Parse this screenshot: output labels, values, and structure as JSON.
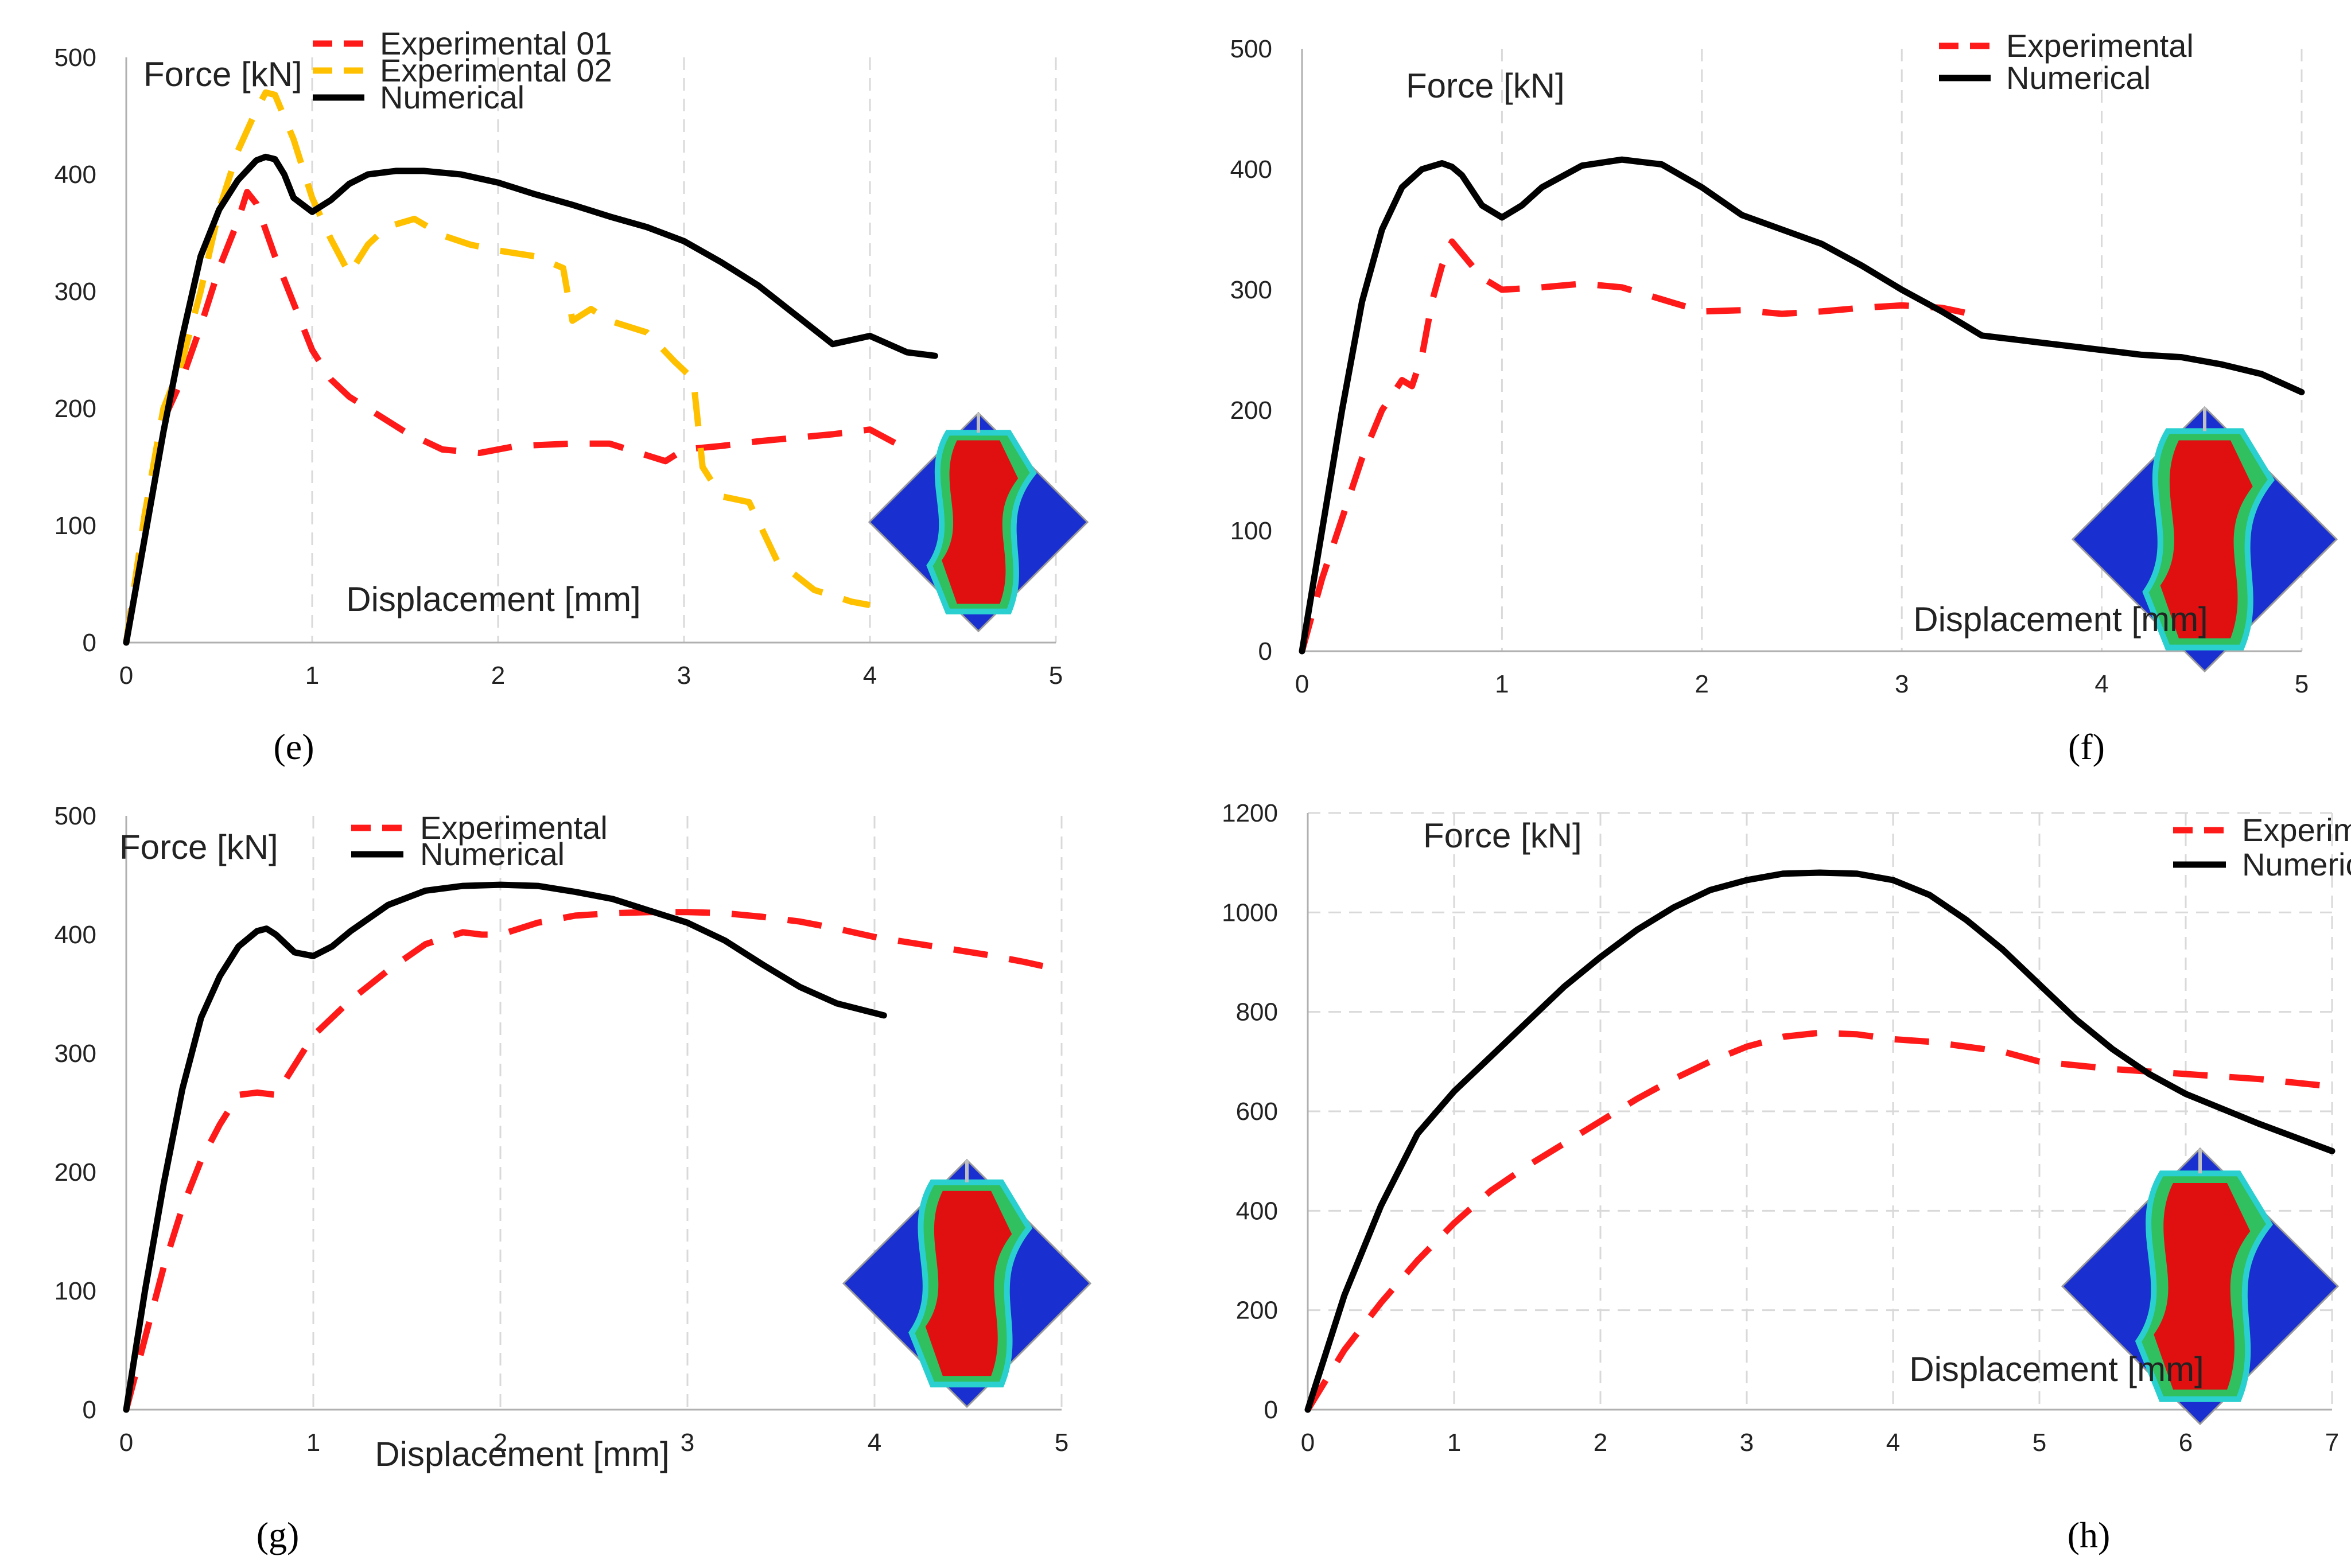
{
  "chart_data": [
    {
      "id": "e",
      "type": "line",
      "panel_label": "(e)",
      "ylabel": "Force [kN]",
      "xlabel": "Displacement [mm]",
      "xlim": [
        0,
        5
      ],
      "ylim": [
        0,
        500
      ],
      "xticks": [
        0,
        1,
        2,
        3,
        4,
        5
      ],
      "yticks": [
        0,
        100,
        200,
        300,
        400,
        500
      ],
      "grid": "vertical dashed",
      "legend_position": "top-right",
      "inset": "damage contour (diamond), bottom-right",
      "series": [
        {
          "name": "Experimental 01",
          "color": "#ff1a1a",
          "style": "dashed",
          "x": [
            0,
            0.1,
            0.2,
            0.3,
            0.4,
            0.5,
            0.6,
            0.65,
            0.7,
            0.8,
            0.9,
            1.0,
            1.1,
            1.2,
            1.3,
            1.5,
            1.7,
            1.9,
            2.1,
            2.4,
            2.6,
            2.8,
            2.9,
            3.0,
            3.2,
            3.4,
            3.6,
            3.8,
            4.0,
            4.2
          ],
          "y": [
            0,
            110,
            190,
            225,
            270,
            320,
            360,
            385,
            375,
            330,
            290,
            250,
            225,
            210,
            200,
            180,
            165,
            162,
            168,
            170,
            170,
            160,
            155,
            165,
            168,
            172,
            175,
            178,
            182,
            165
          ]
        },
        {
          "name": "Experimental 02",
          "color": "#ffc000",
          "style": "dashed",
          "x": [
            0,
            0.1,
            0.2,
            0.3,
            0.4,
            0.5,
            0.6,
            0.7,
            0.75,
            0.8,
            0.9,
            1.0,
            1.1,
            1.2,
            1.3,
            1.4,
            1.55,
            1.7,
            1.85,
            2.0,
            2.2,
            2.35,
            2.4,
            2.5,
            2.6,
            2.8,
            2.95,
            3.05,
            3.1,
            3.2,
            3.35,
            3.5,
            3.7,
            3.9,
            4.0
          ],
          "y": [
            0,
            110,
            200,
            240,
            300,
            370,
            420,
            455,
            470,
            468,
            430,
            380,
            345,
            315,
            340,
            355,
            362,
            348,
            340,
            335,
            330,
            320,
            275,
            285,
            275,
            265,
            240,
            225,
            150,
            125,
            120,
            70,
            45,
            35,
            32
          ]
        },
        {
          "name": "Numerical",
          "color": "#000000",
          "style": "solid",
          "x": [
            0,
            0.1,
            0.2,
            0.3,
            0.4,
            0.5,
            0.6,
            0.7,
            0.75,
            0.8,
            0.85,
            0.9,
            1.0,
            1.1,
            1.2,
            1.3,
            1.45,
            1.6,
            1.8,
            2.0,
            2.2,
            2.4,
            2.6,
            2.8,
            3.0,
            3.2,
            3.4,
            3.6,
            3.8,
            4.0,
            4.2,
            4.35
          ],
          "y": [
            0,
            90,
            180,
            260,
            330,
            370,
            395,
            412,
            415,
            413,
            400,
            380,
            368,
            378,
            392,
            400,
            403,
            403,
            400,
            393,
            383,
            374,
            364,
            355,
            343,
            325,
            305,
            280,
            255,
            262,
            248,
            245
          ]
        }
      ]
    },
    {
      "id": "f",
      "type": "line",
      "panel_label": "(f)",
      "ylabel": "Force [kN]",
      "xlabel": "Displacement [mm]",
      "xlim": [
        0,
        5
      ],
      "ylim": [
        0,
        500
      ],
      "xticks": [
        0,
        1,
        2,
        3,
        4,
        5
      ],
      "yticks": [
        0,
        100,
        200,
        300,
        400,
        500
      ],
      "grid": "vertical dashed",
      "legend_position": "top-right",
      "inset": "damage contour (diamond), bottom-right",
      "series": [
        {
          "name": "Experimental",
          "color": "#ff1a1a",
          "style": "dashed",
          "x": [
            0,
            0.1,
            0.2,
            0.3,
            0.4,
            0.5,
            0.55,
            0.6,
            0.65,
            0.7,
            0.75,
            0.8,
            0.9,
            1.0,
            1.2,
            1.4,
            1.6,
            1.8,
            2.0,
            2.2,
            2.4,
            2.6,
            2.8,
            3.0,
            3.2,
            3.4
          ],
          "y": [
            0,
            60,
            110,
            160,
            200,
            225,
            220,
            245,
            290,
            320,
            340,
            330,
            310,
            300,
            302,
            305,
            302,
            292,
            282,
            283,
            280,
            282,
            285,
            287,
            285,
            278
          ]
        },
        {
          "name": "Numerical",
          "color": "#000000",
          "style": "solid",
          "x": [
            0,
            0.1,
            0.2,
            0.3,
            0.4,
            0.5,
            0.6,
            0.7,
            0.75,
            0.8,
            0.9,
            1.0,
            1.1,
            1.2,
            1.4,
            1.6,
            1.8,
            2.0,
            2.2,
            2.4,
            2.6,
            2.8,
            3.0,
            3.2,
            3.4,
            3.6,
            3.8,
            4.0,
            4.2,
            4.4,
            4.6,
            4.8,
            5.0
          ],
          "y": [
            0,
            100,
            200,
            290,
            350,
            385,
            400,
            405,
            402,
            395,
            370,
            360,
            370,
            385,
            403,
            408,
            404,
            385,
            362,
            350,
            338,
            320,
            300,
            282,
            262,
            258,
            254,
            250,
            246,
            244,
            238,
            230,
            215
          ]
        }
      ]
    },
    {
      "id": "g",
      "type": "line",
      "panel_label": "(g)",
      "ylabel": "Force [kN]",
      "xlabel": "Displacement [mm]",
      "xlim": [
        0,
        5
      ],
      "ylim": [
        0,
        500
      ],
      "xticks": [
        0,
        1,
        2,
        3,
        4,
        5
      ],
      "yticks": [
        0,
        100,
        200,
        300,
        400,
        500
      ],
      "grid": "vertical dashed",
      "legend_position": "top-right",
      "inset": "damage contour (diamond), bottom-right",
      "series": [
        {
          "name": "Experimental",
          "color": "#ff1a1a",
          "style": "dashed",
          "x": [
            0,
            0.1,
            0.2,
            0.3,
            0.4,
            0.5,
            0.6,
            0.7,
            0.8,
            0.9,
            1.0,
            1.2,
            1.4,
            1.6,
            1.8,
            1.9,
            2.0,
            2.2,
            2.4,
            2.6,
            2.8,
            3.0,
            3.2,
            3.4,
            3.6,
            3.8,
            4.0,
            4.2,
            4.4,
            4.6,
            4.8,
            5.0
          ],
          "y": [
            0,
            60,
            120,
            170,
            210,
            240,
            265,
            267,
            265,
            290,
            315,
            345,
            370,
            392,
            402,
            400,
            400,
            410,
            416,
            418,
            419,
            419,
            418,
            415,
            411,
            405,
            398,
            393,
            388,
            383,
            377,
            370
          ]
        },
        {
          "name": "Numerical",
          "color": "#000000",
          "style": "solid",
          "x": [
            0,
            0.1,
            0.2,
            0.3,
            0.4,
            0.5,
            0.6,
            0.7,
            0.75,
            0.8,
            0.9,
            1.0,
            1.1,
            1.2,
            1.4,
            1.6,
            1.8,
            2.0,
            2.2,
            2.4,
            2.6,
            2.8,
            3.0,
            3.2,
            3.4,
            3.6,
            3.8,
            4.05
          ],
          "y": [
            0,
            100,
            190,
            270,
            330,
            365,
            390,
            403,
            405,
            400,
            385,
            382,
            390,
            403,
            425,
            437,
            441,
            442,
            441,
            436,
            430,
            420,
            410,
            395,
            375,
            356,
            342,
            332
          ]
        }
      ]
    },
    {
      "id": "h",
      "type": "line",
      "panel_label": "(h)",
      "ylabel": "Force [kN]",
      "xlabel": "Displacement [mm]",
      "xlim": [
        0,
        7
      ],
      "ylim": [
        0,
        1200
      ],
      "xticks": [
        0,
        1,
        2,
        3,
        4,
        5,
        6,
        7
      ],
      "yticks": [
        0,
        200,
        400,
        600,
        800,
        1000,
        1200
      ],
      "grid": "vertical and horizontal dashed",
      "legend_position": "top-right",
      "inset": "damage contour (diamond), bottom-right",
      "series": [
        {
          "name": "Experimental",
          "color": "#ff1a1a",
          "style": "dashed",
          "x": [
            0,
            0.25,
            0.5,
            0.75,
            1.0,
            1.25,
            1.5,
            1.75,
            2.0,
            2.25,
            2.5,
            2.75,
            3.0,
            3.25,
            3.5,
            3.75,
            4.0,
            4.25,
            4.5,
            4.75,
            5.0,
            5.5,
            6.0,
            6.5,
            7.0
          ],
          "y": [
            0,
            120,
            215,
            300,
            375,
            440,
            490,
            535,
            580,
            625,
            665,
            700,
            730,
            750,
            758,
            755,
            745,
            740,
            730,
            720,
            700,
            685,
            675,
            665,
            650
          ]
        },
        {
          "name": "Numerical",
          "color": "#000000",
          "style": "solid",
          "x": [
            0,
            0.25,
            0.5,
            0.75,
            1.0,
            1.25,
            1.5,
            1.75,
            2.0,
            2.25,
            2.5,
            2.75,
            3.0,
            3.25,
            3.5,
            3.75,
            4.0,
            4.25,
            4.5,
            4.75,
            5.0,
            5.25,
            5.5,
            5.75,
            6.0,
            6.5,
            7.0
          ],
          "y": [
            0,
            230,
            410,
            555,
            640,
            710,
            780,
            850,
            910,
            965,
            1010,
            1045,
            1065,
            1078,
            1080,
            1078,
            1065,
            1035,
            985,
            925,
            855,
            785,
            725,
            675,
            635,
            575,
            520
          ]
        }
      ]
    }
  ]
}
